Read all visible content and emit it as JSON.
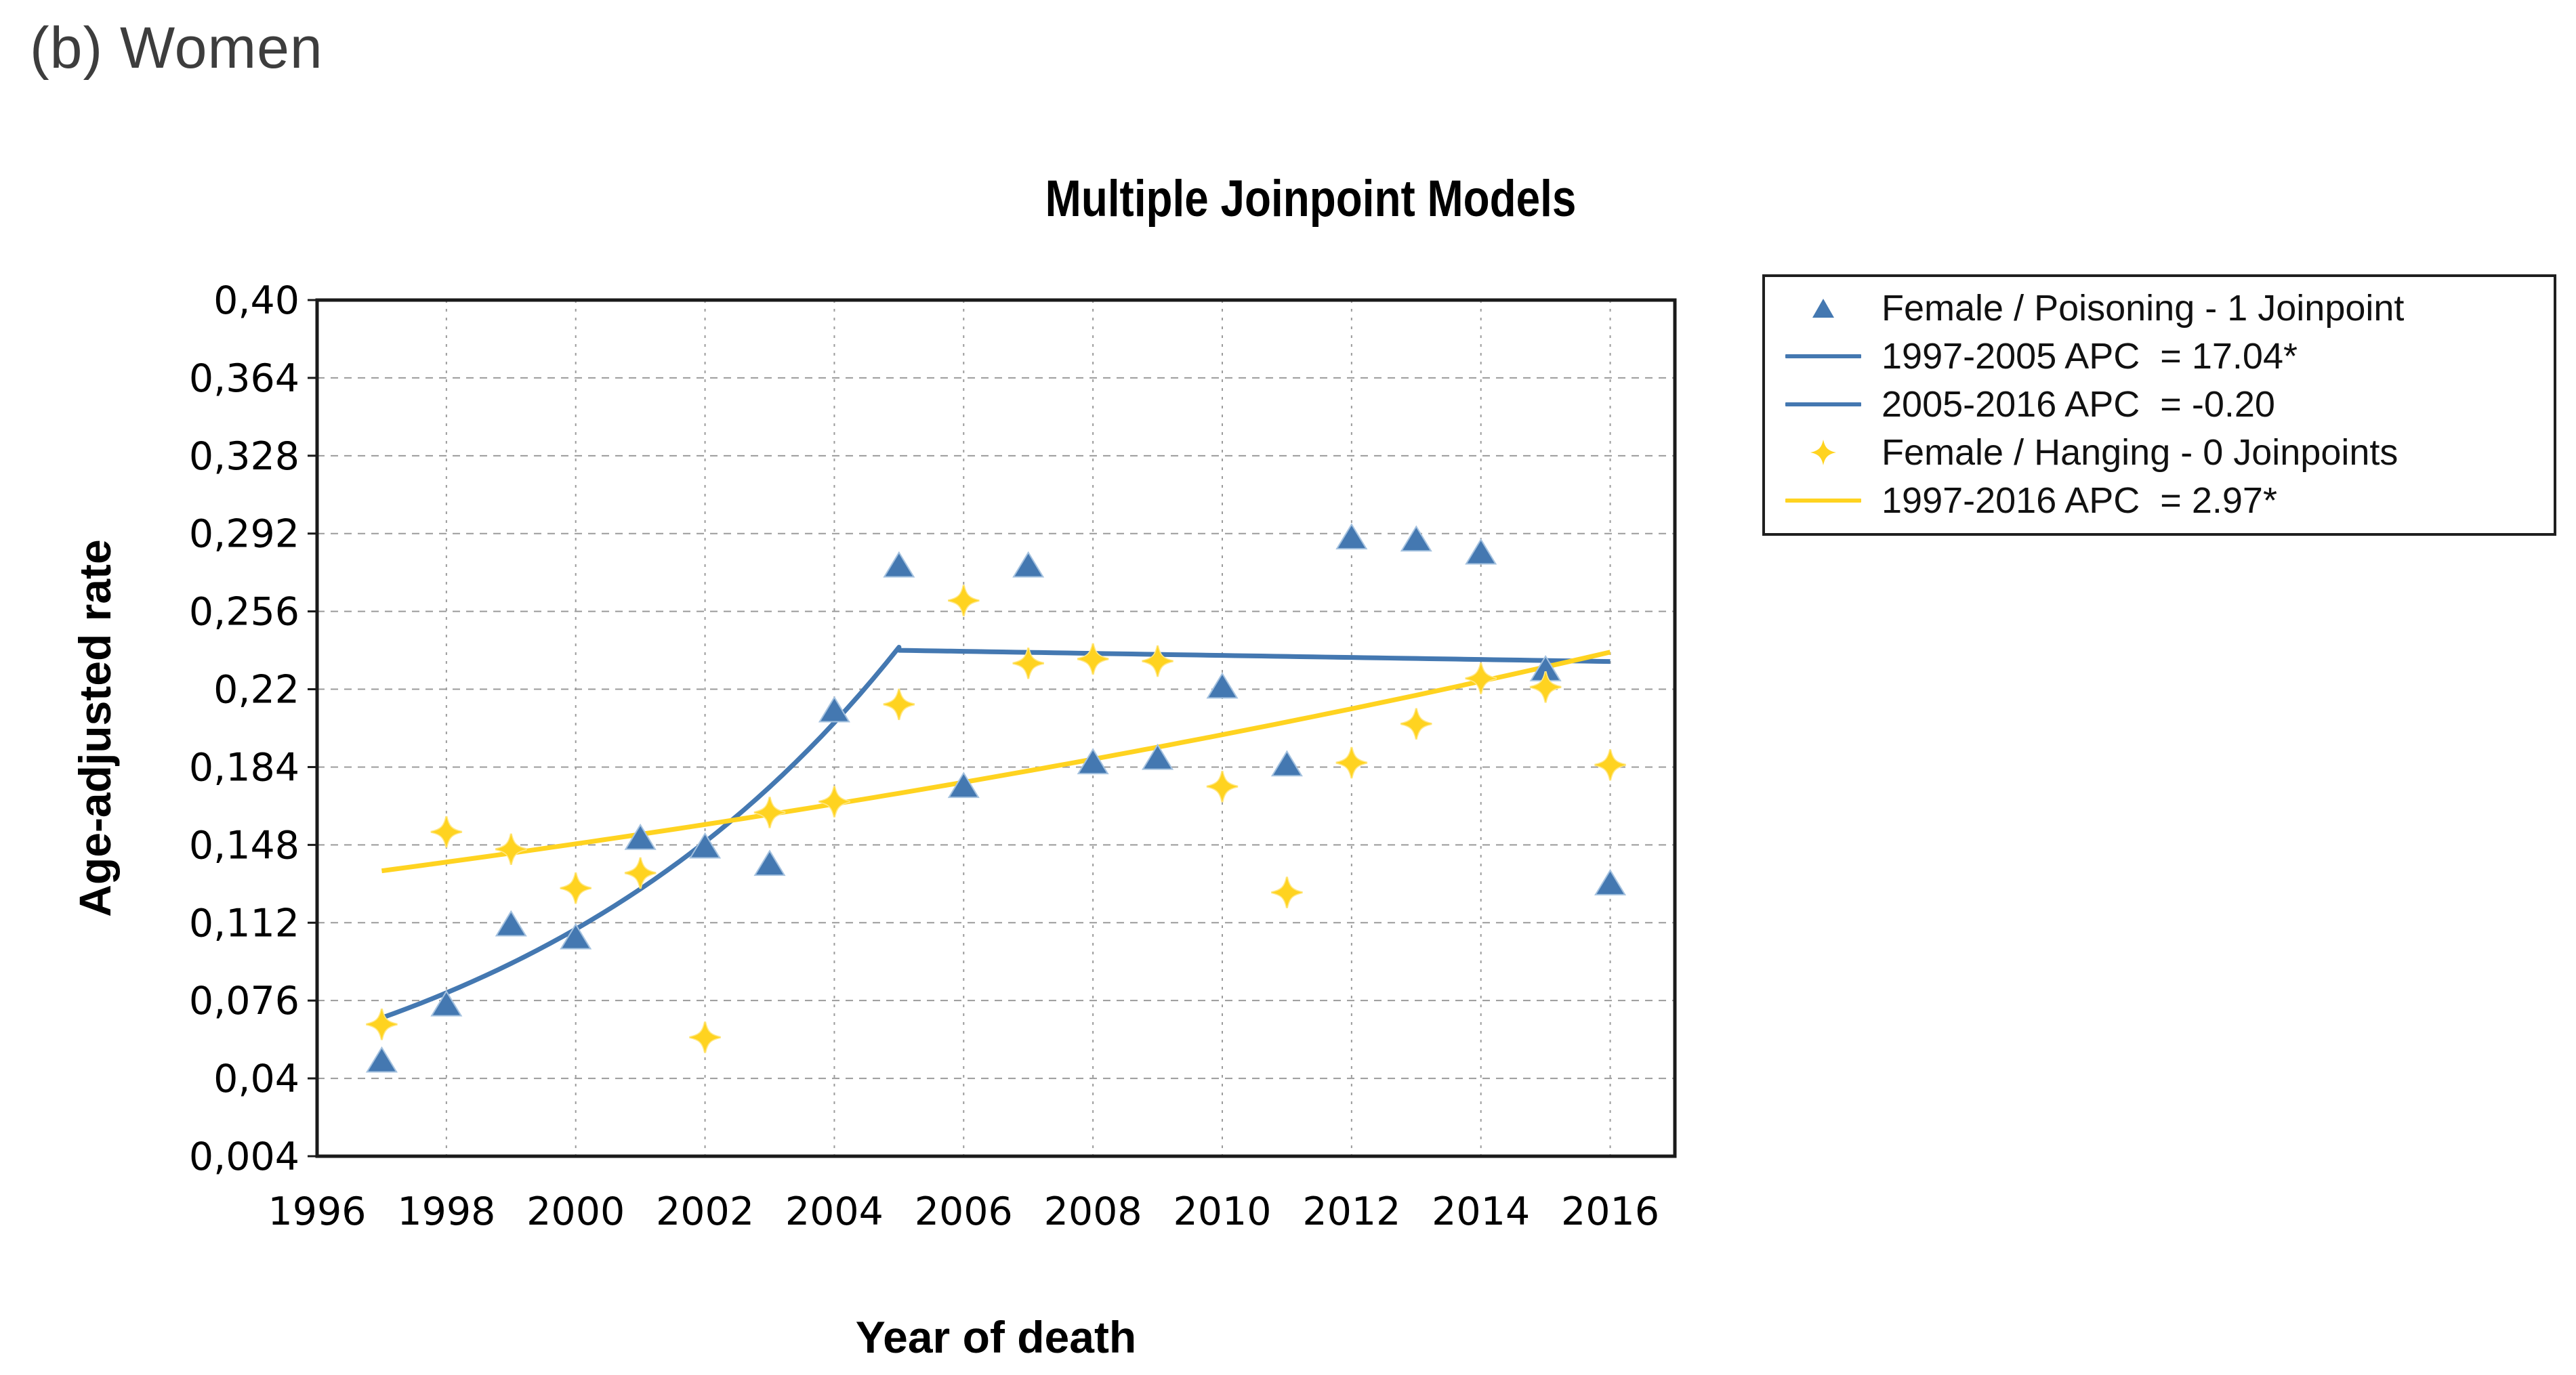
{
  "page": {
    "label": "(b) Women"
  },
  "colors": {
    "poisoning_blue": "#4478B1",
    "poisoning_blue_halo": "#A5C2DF",
    "hanging_yellow": "#FFD320",
    "hanging_yellow_halo": "#FFE784",
    "grid_gray": "#9B9B9B",
    "axis_black": "#1A1A1A",
    "page_label_gray": "#3D3D3D"
  },
  "legend": {
    "items": [
      {
        "marker": "triangle",
        "series": "poisoning",
        "label": "Female / Poisoning - 1 Joinpoint"
      },
      {
        "marker": "line",
        "series": "poisoning",
        "label": "1997-2005 APC  = 17.04*"
      },
      {
        "marker": "line",
        "series": "poisoning",
        "label": "2005-2016 APC  = -0.20"
      },
      {
        "marker": "star4",
        "series": "hanging",
        "label": "Female / Hanging - 0 Joinpoints"
      },
      {
        "marker": "line",
        "series": "hanging",
        "label": "1997-2016 APC  = 2.97*"
      }
    ]
  },
  "chart_data": {
    "type": "scatter",
    "title": "Multiple Joinpoint Models",
    "xlabel": "Year of death",
    "ylabel": "Age-adjusted rate",
    "x_range": [
      1996,
      2017
    ],
    "y_range": [
      0.004,
      0.4
    ],
    "grid": "dashed",
    "legend_position": "top-right",
    "x_ticks": [
      1996,
      1998,
      2000,
      2002,
      2004,
      2006,
      2008,
      2010,
      2012,
      2014,
      2016
    ],
    "y_ticks": {
      "labels": [
        "0,40",
        "0,364",
        "0,328",
        "0,292",
        "0,256",
        "0,22",
        "0,184",
        "0,148",
        "0,112",
        "0,076",
        "0,04",
        "0,004"
      ],
      "values": [
        0.4,
        0.364,
        0.328,
        0.292,
        0.256,
        0.22,
        0.184,
        0.148,
        0.112,
        0.076,
        0.04,
        0.004
      ]
    },
    "series": [
      {
        "name": "Female / Poisoning - 1 Joinpoint",
        "marker": "triangle",
        "color_key": "poisoning_blue",
        "x": [
          1997,
          1998,
          1999,
          2000,
          2001,
          2002,
          2003,
          2004,
          2005,
          2006,
          2007,
          2008,
          2009,
          2010,
          2011,
          2012,
          2013,
          2014,
          2015,
          2016
        ],
        "y": [
          0.048,
          0.074,
          0.111,
          0.105,
          0.151,
          0.147,
          0.139,
          0.21,
          0.277,
          0.175,
          0.277,
          0.186,
          0.188,
          0.221,
          0.185,
          0.29,
          0.289,
          0.283,
          0.229,
          0.13
        ]
      },
      {
        "name": "Female / Hanging - 0 Joinpoints",
        "marker": "star4",
        "color_key": "hanging_yellow",
        "x": [
          1997,
          1998,
          1999,
          2000,
          2001,
          2002,
          2003,
          2004,
          2005,
          2006,
          2007,
          2008,
          2009,
          2010,
          2011,
          2012,
          2013,
          2014,
          2015,
          2016
        ],
        "y": [
          0.065,
          0.154,
          0.146,
          0.128,
          0.135,
          0.059,
          0.163,
          0.168,
          0.213,
          0.261,
          0.232,
          0.234,
          0.233,
          0.175,
          0.126,
          0.186,
          0.204,
          0.225,
          0.221,
          0.185
        ]
      }
    ],
    "fits": [
      {
        "series": "Female / Poisoning - 1 Joinpoint",
        "color_key": "poisoning_blue",
        "joinpoints": [
          2005
        ],
        "segments": [
          {
            "from": 1997,
            "to": 2005,
            "start_value": 0.068,
            "apc": 17.04,
            "apc_label": "1997-2005 APC  = 17.04*"
          },
          {
            "from": 2005,
            "to": 2016,
            "start_value": 0.238,
            "apc": -0.2,
            "apc_label": "2005-2016 APC  = -0.20"
          }
        ]
      },
      {
        "series": "Female / Hanging - 0 Joinpoints",
        "color_key": "hanging_yellow",
        "joinpoints": [],
        "segments": [
          {
            "from": 1997,
            "to": 2016,
            "start_value": 0.136,
            "apc": 2.97,
            "apc_label": "1997-2016 APC  = 2.97*"
          }
        ]
      }
    ]
  }
}
